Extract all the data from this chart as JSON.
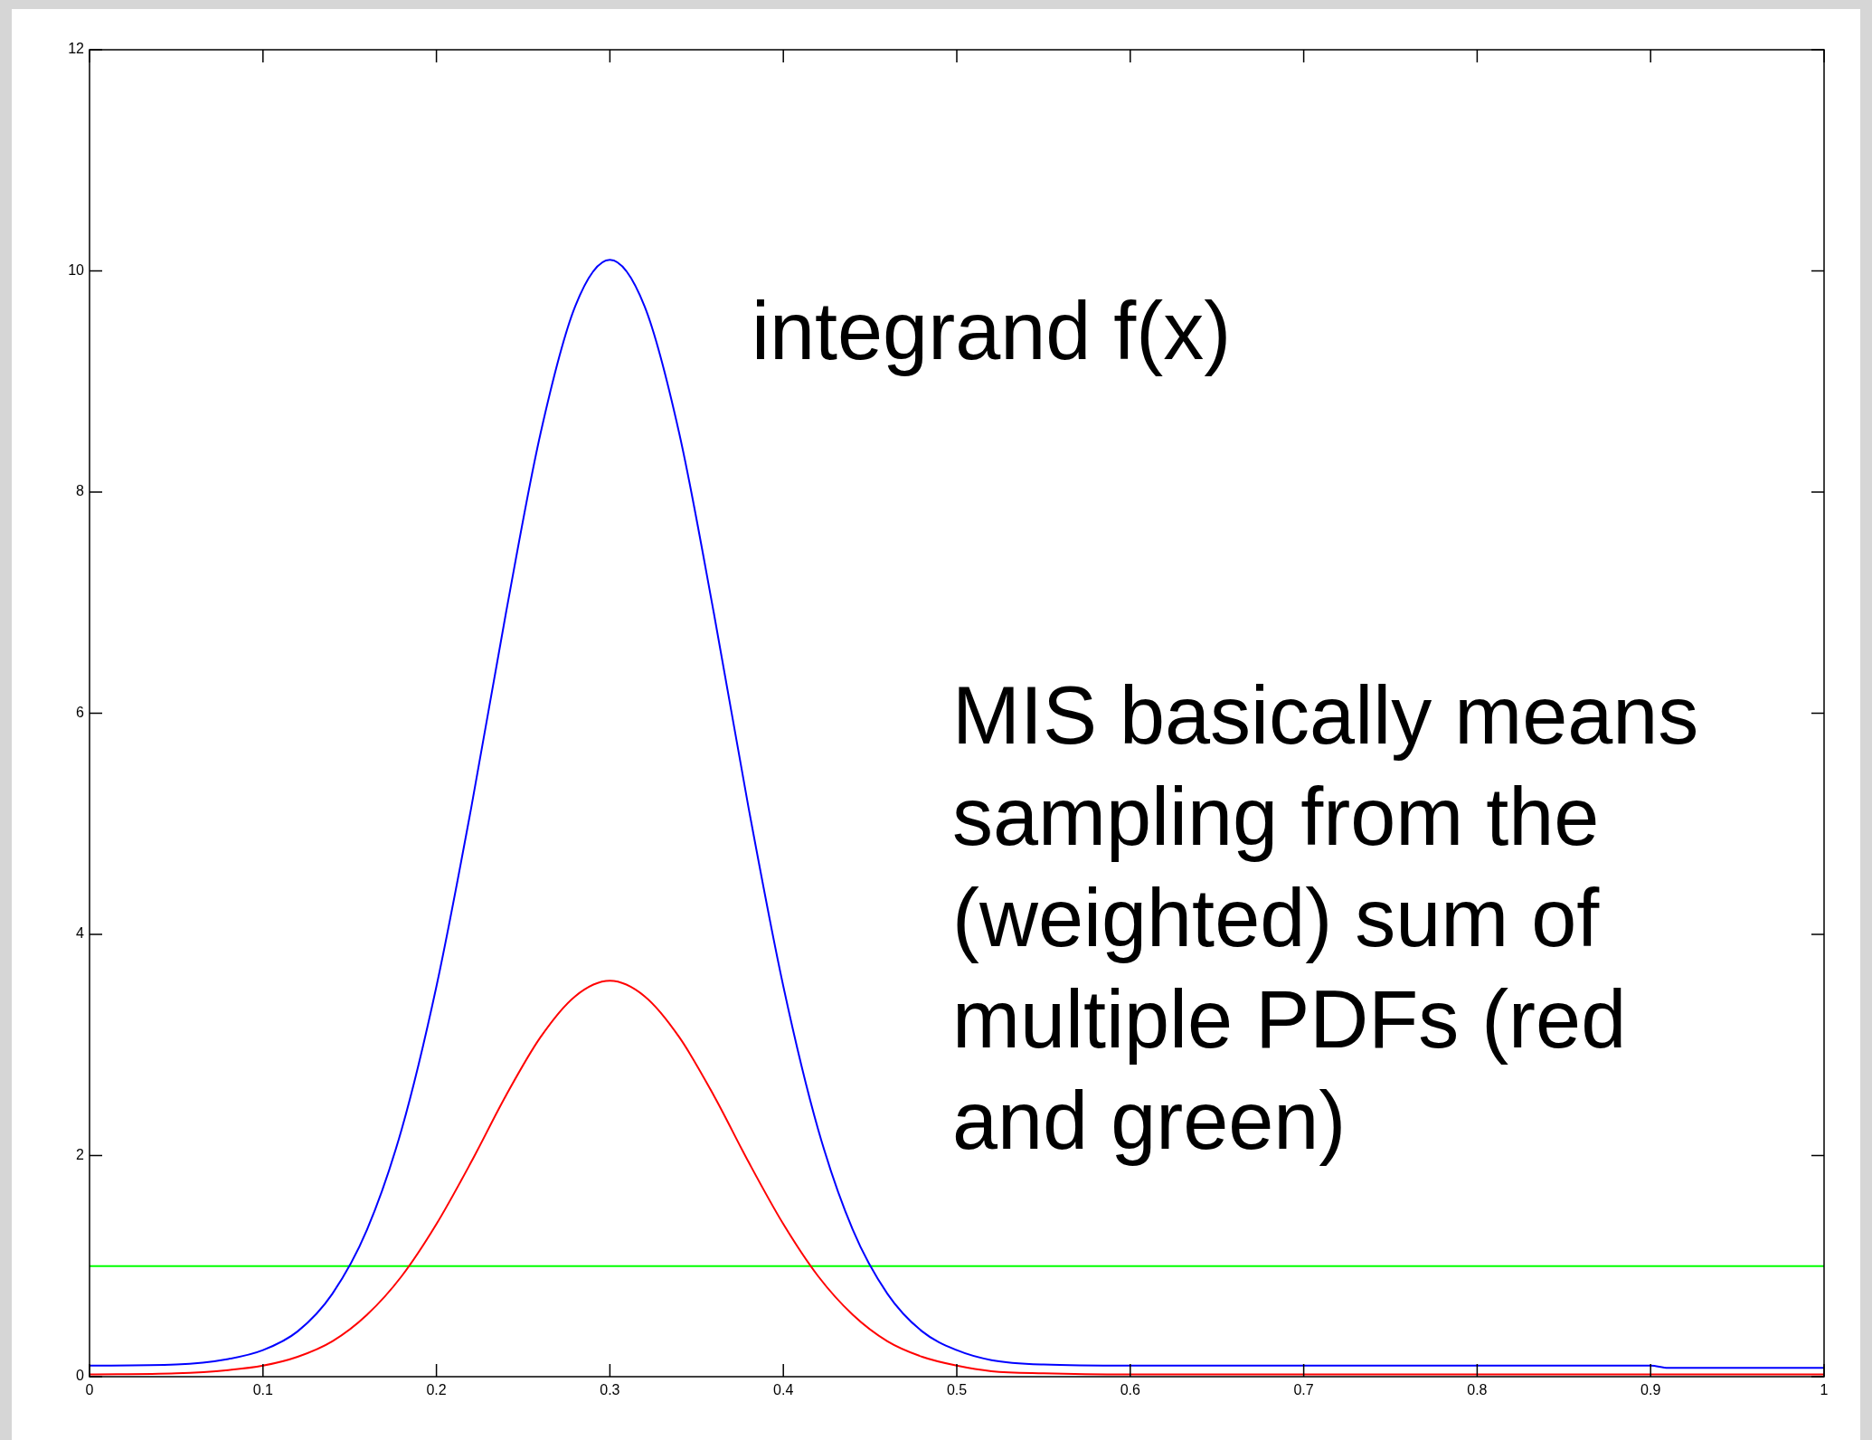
{
  "chart_data": {
    "type": "line",
    "x": [
      0,
      0.05,
      0.08,
      0.1,
      0.12,
      0.14,
      0.16,
      0.18,
      0.2,
      0.22,
      0.24,
      0.26,
      0.28,
      0.3,
      0.32,
      0.34,
      0.36,
      0.38,
      0.4,
      0.42,
      0.44,
      0.46,
      0.48,
      0.5,
      0.52,
      0.55,
      0.6,
      0.7,
      0.8,
      0.9,
      0.91,
      1
    ],
    "series": [
      {
        "color": "#0000ff",
        "values": [
          0.1,
          0.11,
          0.16,
          0.24,
          0.41,
          0.75,
          1.33,
          2.24,
          3.53,
          5.14,
          6.9,
          8.53,
          9.68,
          10.1,
          9.68,
          8.53,
          6.9,
          5.14,
          3.53,
          2.24,
          1.33,
          0.75,
          0.41,
          0.24,
          0.15,
          0.11,
          0.1,
          0.1,
          0.1,
          0.1,
          0.08,
          0.08
        ]
      },
      {
        "color": "#ff0000",
        "values": [
          0.02,
          0.03,
          0.06,
          0.1,
          0.18,
          0.32,
          0.56,
          0.91,
          1.38,
          1.94,
          2.54,
          3.07,
          3.44,
          3.58,
          3.44,
          3.07,
          2.54,
          1.94,
          1.38,
          0.91,
          0.56,
          0.32,
          0.18,
          0.1,
          0.05,
          0.03,
          0.02,
          0.02,
          0.02,
          0.02,
          0.02,
          0.02
        ]
      },
      {
        "color": "#00ff00",
        "values": [
          1,
          1,
          1,
          1,
          1,
          1,
          1,
          1,
          1,
          1,
          1,
          1,
          1,
          1,
          1,
          1,
          1,
          1,
          1,
          1,
          1,
          1,
          1,
          1,
          1,
          1,
          1,
          1,
          1,
          1,
          1,
          1
        ]
      }
    ],
    "xlim": [
      0,
      1
    ],
    "xticks": [
      0,
      0.1,
      0.2,
      0.3,
      0.4,
      0.5,
      0.6,
      0.7,
      0.8,
      0.9,
      1
    ],
    "ylim": [
      0,
      12
    ],
    "yticks": [
      0,
      2,
      4,
      6,
      8,
      10,
      12
    ],
    "annotations": [
      "integrand f(x)",
      "MIS basically means sampling from the (weighted) sum of multiple PDFs (red and green)"
    ],
    "grid": false,
    "legend": false,
    "marker": "none",
    "line_style": "solid"
  }
}
